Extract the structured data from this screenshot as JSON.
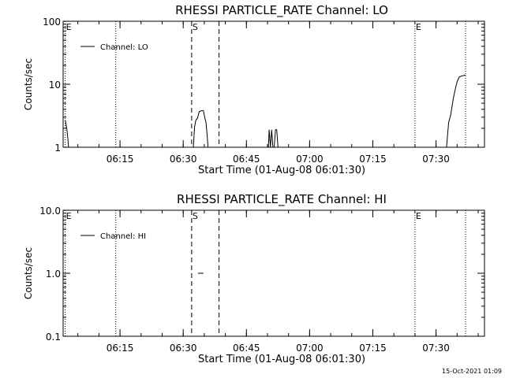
{
  "footer": {
    "timestamp": "15-Oct-2021 01:09"
  },
  "chart_data": [
    {
      "type": "line",
      "title": "RHESSI PARTICLE_RATE Channel: LO",
      "xlabel": "Start Time (01-Aug-08 06:01:30)",
      "ylabel": "Counts/sec",
      "yscale": "log",
      "ylim": [
        1,
        100
      ],
      "yticks": [
        1,
        10,
        100
      ],
      "ytick_labels": [
        "1",
        "10",
        "100"
      ],
      "xlim_minutes_label": [
        "06:02",
        "07:40"
      ],
      "xticks": [
        "06:15",
        "06:30",
        "06:45",
        "07:00",
        "07:15",
        "07:30"
      ],
      "legend": {
        "entries": [
          "Channel: LO"
        ],
        "placement": "top-left"
      },
      "markers": [
        {
          "label": "E",
          "time": "06:02",
          "style": "dotted"
        },
        {
          "label": "",
          "time": "06:14",
          "style": "dotted"
        },
        {
          "label": "S",
          "time": "06:32",
          "style": "dashed"
        },
        {
          "label": "",
          "time": "06:38.5",
          "style": "dashed"
        },
        {
          "label": "E",
          "time": "07:25",
          "style": "dotted"
        },
        {
          "label": "",
          "time": "07:37",
          "style": "dotted"
        }
      ],
      "series": [
        {
          "segments": [
            {
              "x": [
                "06:02",
                "06:02.2",
                "06:02.4",
                "06:02.6",
                "06:02.8"
              ],
              "y": [
                2.7,
                2.3,
                1.9,
                1.4,
                1.0
              ]
            },
            {
              "x": [
                "06:32.4",
                "06:32.7",
                "06:33",
                "06:33.4",
                "06:33.8",
                "06:34.3",
                "06:34.8",
                "06:35.1",
                "06:35.4",
                "06:35.6",
                "06:35.9"
              ],
              "y": [
                1.0,
                2.1,
                2.7,
                2.9,
                3.7,
                3.8,
                3.8,
                3.0,
                2.5,
                1.8,
                1.0
              ]
            },
            {
              "x": [
                "06:50.2",
                "06:50.4",
                "06:50.7",
                "06:51",
                "06:51.3",
                "06:51.6",
                "06:51.9",
                "06:52.2",
                "06:52.5"
              ],
              "y": [
                1.0,
                1.9,
                1.0,
                1.9,
                1.0,
                1.0,
                1.9,
                1.9,
                1.0
              ]
            },
            {
              "x": [
                "07:32.5",
                "07:33",
                "07:33.5",
                "07:34",
                "07:34.5",
                "07:35",
                "07:35.5",
                "07:36",
                "07:37"
              ],
              "y": [
                1.0,
                2.5,
                3.3,
                5.5,
                8.0,
                11.0,
                13.0,
                13.5,
                14.0
              ]
            }
          ]
        }
      ]
    },
    {
      "type": "line",
      "title": "RHESSI PARTICLE_RATE Channel: HI",
      "xlabel": "Start Time (01-Aug-08 06:01:30)",
      "ylabel": "Counts/sec",
      "yscale": "log",
      "ylim": [
        0.1,
        10
      ],
      "yticks": [
        0.1,
        1,
        10
      ],
      "ytick_labels": [
        "0.1",
        "1.0",
        "10.0"
      ],
      "xticks": [
        "06:15",
        "06:30",
        "06:45",
        "07:00",
        "07:15",
        "07:30"
      ],
      "legend": {
        "entries": [
          "Channel: HI"
        ],
        "placement": "top-left"
      },
      "markers": [
        {
          "label": "E",
          "time": "06:02",
          "style": "dotted"
        },
        {
          "label": "",
          "time": "06:14",
          "style": "dotted"
        },
        {
          "label": "S",
          "time": "06:32",
          "style": "dashed"
        },
        {
          "label": "",
          "time": "06:38.5",
          "style": "dashed"
        },
        {
          "label": "E",
          "time": "07:25",
          "style": "dotted"
        },
        {
          "label": "",
          "time": "07:37",
          "style": "dotted"
        }
      ],
      "series": [
        {
          "segments": [
            {
              "x": [
                "06:33.5",
                "06:34.8"
              ],
              "y": [
                1.0,
                1.0
              ]
            }
          ]
        }
      ]
    }
  ]
}
